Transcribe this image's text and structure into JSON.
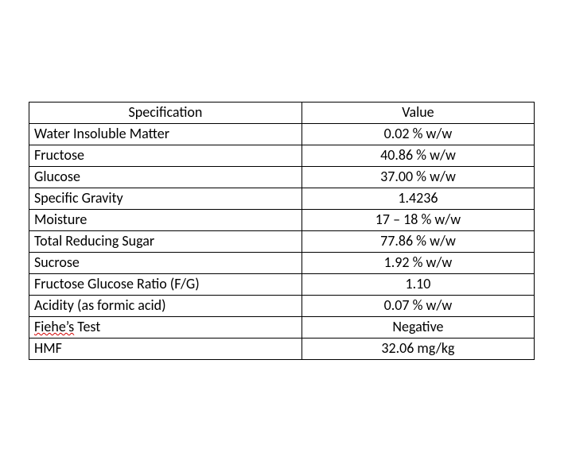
{
  "table": {
    "columns": [
      "Specification",
      "Value"
    ],
    "col_widths_pct": [
      54,
      46
    ],
    "header_align": [
      "center",
      "center"
    ],
    "body_align": [
      "left",
      "center"
    ],
    "font_family": "Calibri",
    "font_size_pt": 14,
    "border_color": "#000000",
    "background_color": "#ffffff",
    "text_color": "#000000",
    "rows": [
      {
        "spec": "Water Insoluble Matter",
        "value": "0.02 % w/w"
      },
      {
        "spec": "Fructose",
        "value": "40.86 % w/w"
      },
      {
        "spec": "Glucose",
        "value": "37.00 % w/w"
      },
      {
        "spec": "Specific Gravity",
        "value": "1.4236"
      },
      {
        "spec": "Moisture",
        "value": "17 – 18 % w/w"
      },
      {
        "spec": "Total Reducing Sugar",
        "value": "77.86 % w/w"
      },
      {
        "spec": "Sucrose",
        "value": "1.92 % w/w"
      },
      {
        "spec": "Fructose Glucose Ratio (F/G)",
        "value": "1.10"
      },
      {
        "spec": "Acidity (as formic acid)",
        "value": "0.07 % w/w"
      },
      {
        "spec": "Fiehe’s Test",
        "value": "Negative",
        "spec_spellcheck_word": "Fiehe’s"
      },
      {
        "spec": "HMF",
        "value": "32.06 mg/kg"
      }
    ],
    "spellcheck_color": "#d00000"
  }
}
